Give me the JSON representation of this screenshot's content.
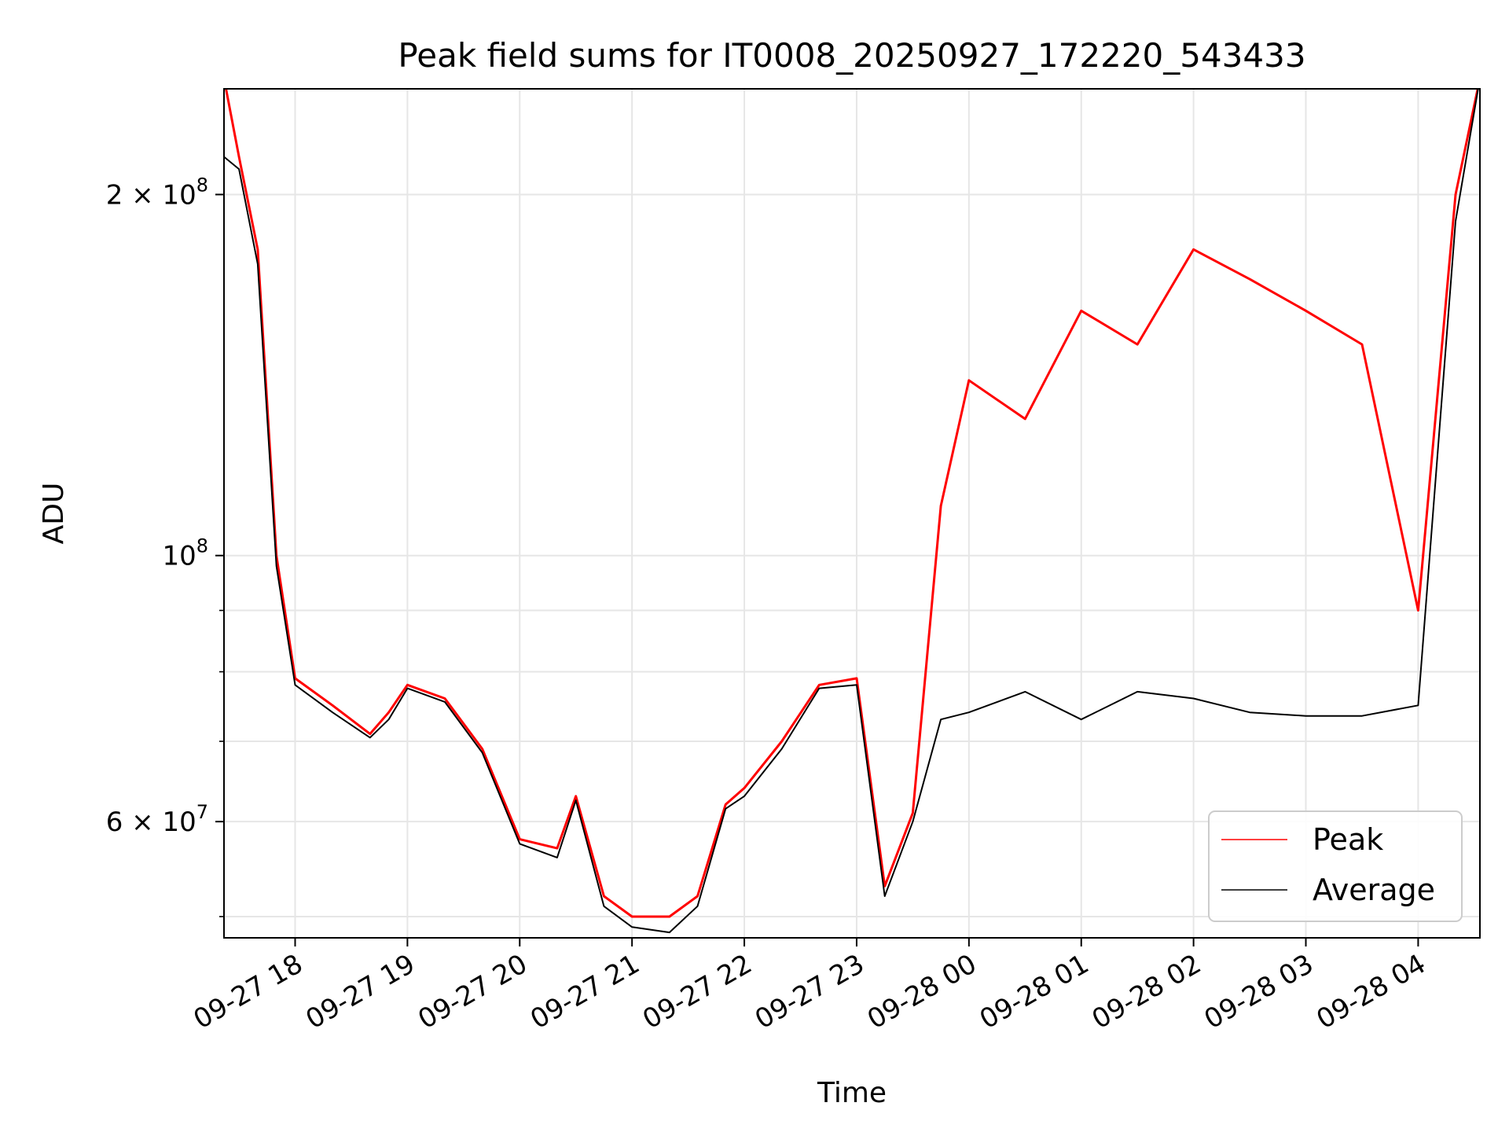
{
  "chart_data": {
    "type": "line",
    "title": "Peak field sums for IT0008_20250927_172220_543433",
    "xlabel": "Time",
    "ylabel": "ADU",
    "yscale": "log",
    "xlim": [
      "2025-09-27 17:22",
      "2025-09-28 04:33"
    ],
    "ylim": [
      48000000,
      245000000
    ],
    "grid": true,
    "legend": "lower-right",
    "x_ticks": [
      "09-27 18",
      "09-27 19",
      "09-27 20",
      "09-27 21",
      "09-27 22",
      "09-27 23",
      "09-28 00",
      "09-28 01",
      "09-28 02",
      "09-28 03",
      "09-28 04"
    ],
    "y_ticks": [
      {
        "value": 200000000,
        "mantissa": "2",
        "exponent": "8"
      },
      {
        "value": 100000000,
        "mantissa": "",
        "exponent": "8"
      },
      {
        "value": 60000000,
        "mantissa": "6",
        "exponent": "7"
      }
    ],
    "x": [
      "2025-09-27 17:22",
      "2025-09-27 17:30",
      "2025-09-27 17:40",
      "2025-09-27 17:50",
      "2025-09-27 18:00",
      "2025-09-27 18:20",
      "2025-09-27 18:40",
      "2025-09-27 18:50",
      "2025-09-27 19:00",
      "2025-09-27 19:20",
      "2025-09-27 19:40",
      "2025-09-27 20:00",
      "2025-09-27 20:20",
      "2025-09-27 20:30",
      "2025-09-27 20:45",
      "2025-09-27 21:00",
      "2025-09-27 21:20",
      "2025-09-27 21:35",
      "2025-09-27 21:50",
      "2025-09-27 22:00",
      "2025-09-27 22:20",
      "2025-09-27 22:40",
      "2025-09-27 23:00",
      "2025-09-27 23:15",
      "2025-09-27 23:30",
      "2025-09-27 23:45",
      "2025-09-28 00:00",
      "2025-09-28 00:30",
      "2025-09-28 01:00",
      "2025-09-28 01:30",
      "2025-09-28 02:00",
      "2025-09-28 02:30",
      "2025-09-28 03:00",
      "2025-09-28 03:30",
      "2025-09-28 04:00",
      "2025-09-28 04:20",
      "2025-09-28 04:33"
    ],
    "series": [
      {
        "name": "Peak",
        "color": "#ff0000",
        "values": [
          250000000,
          215000000,
          180000000,
          100000000,
          79000000,
          75000000,
          71000000,
          74000000,
          78000000,
          76000000,
          69000000,
          58000000,
          57000000,
          63000000,
          52000000,
          50000000,
          50000000,
          52000000,
          62000000,
          64000000,
          70000000,
          78000000,
          79000000,
          53000000,
          61000000,
          110000000,
          140000000,
          130000000,
          160000000,
          150000000,
          180000000,
          170000000,
          160000000,
          150000000,
          90000000,
          200000000,
          250000000
        ]
      },
      {
        "name": "Average",
        "color": "#000000",
        "values": [
          215000000,
          210000000,
          175000000,
          98000000,
          78000000,
          74000000,
          70500000,
          73000000,
          77500000,
          75500000,
          68500000,
          57500000,
          56000000,
          62500000,
          51000000,
          49000000,
          48500000,
          51000000,
          61500000,
          63000000,
          69000000,
          77500000,
          78000000,
          52000000,
          60000000,
          73000000,
          74000000,
          77000000,
          73000000,
          77000000,
          76000000,
          74000000,
          73500000,
          73500000,
          75000000,
          190000000,
          250000000
        ]
      }
    ]
  }
}
